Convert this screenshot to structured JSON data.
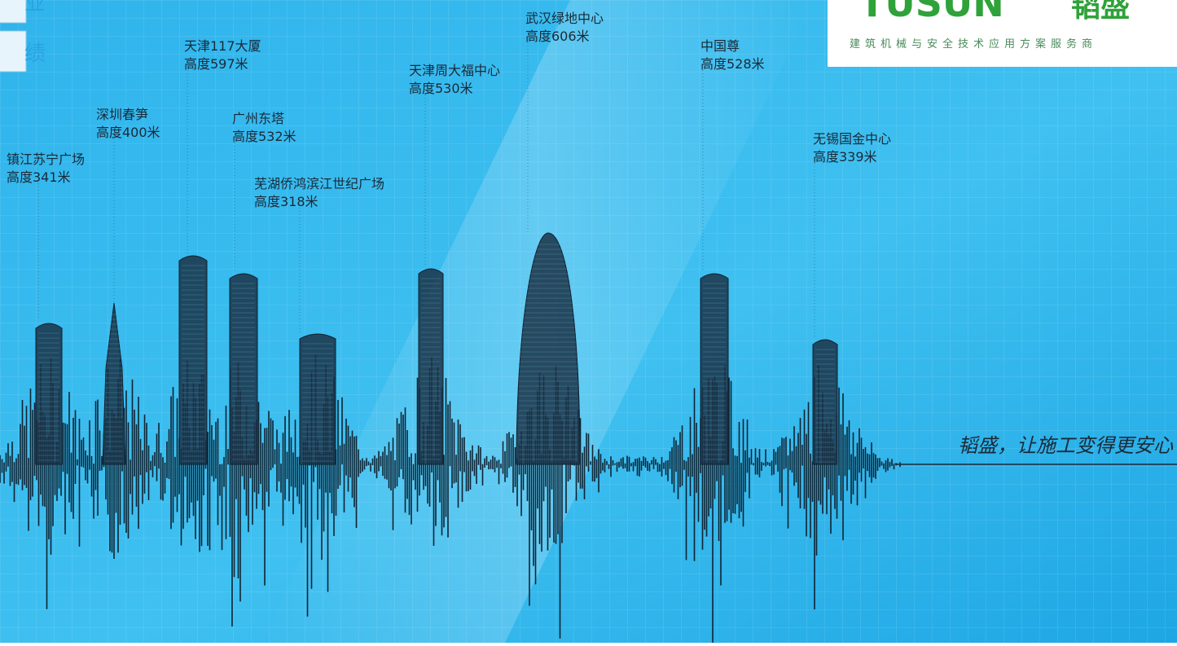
{
  "badge": [
    "业",
    "绩"
  ],
  "logo": {
    "brand": "TUSUN",
    "brand_cn": "韬盛",
    "tagline": "建筑机械与安全技术应用方案服务商"
  },
  "buildings": [
    {
      "name": "镇江苏宁广场",
      "height": "高度341米"
    },
    {
      "name": "深圳春笋",
      "height": "高度400米"
    },
    {
      "name": "天津117大厦",
      "height": "高度597米"
    },
    {
      "name": "广州东塔",
      "height": "高度532米"
    },
    {
      "name": "芜湖侨鸿滨江世纪广场",
      "height": "高度318米"
    },
    {
      "name": "天津周大福中心",
      "height": "高度530米"
    },
    {
      "name": "武汉绿地中心",
      "height": "高度606米"
    },
    {
      "name": "中国尊",
      "height": "高度528米"
    },
    {
      "name": "无锡国金中心",
      "height": "高度339米"
    }
  ],
  "slogan": "韬盛，让施工变得更安心"
}
